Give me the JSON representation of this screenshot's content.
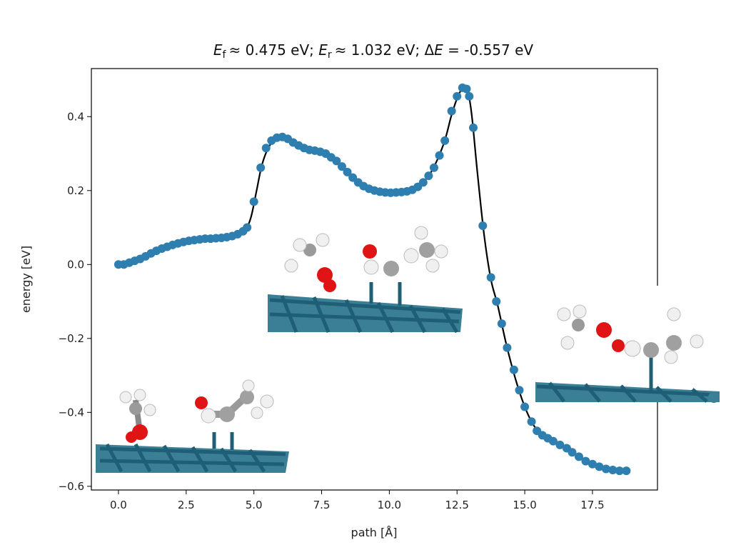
{
  "chart_data": {
    "type": "scatter",
    "title": {
      "sym1": "E",
      "sub1": "f",
      "part1": "≈ 0.475 eV; ",
      "sym2": "E",
      "sub2": "r",
      "part2": "≈ 1.032 eV; Δ",
      "sym3": "E",
      "part3": " = -0.557 eV"
    },
    "xlabel": "path [Å]",
    "ylabel": "energy [eV]",
    "xlim": [
      -1.0,
      19.9
    ],
    "ylim": [
      -0.61,
      0.53
    ],
    "xticks": [
      0.0,
      2.5,
      5.0,
      7.5,
      10.0,
      12.5,
      15.0,
      17.5
    ],
    "xtick_labels": [
      "0.0",
      "2.5",
      "5.0",
      "7.5",
      "10.0",
      "12.5",
      "15.0",
      "17.5"
    ],
    "yticks": [
      0.4,
      0.2,
      0.0,
      -0.2,
      -0.4,
      -0.6
    ],
    "ytick_labels": [
      "0.4",
      "0.2",
      "0.0",
      "−0.2",
      "−0.4",
      "−0.6"
    ],
    "grid": false,
    "marker_color": "#2e7fb0",
    "line_color": "#000000",
    "points": [
      [
        0.0,
        0.0
      ],
      [
        0.2,
        0.0
      ],
      [
        0.4,
        0.005
      ],
      [
        0.6,
        0.01
      ],
      [
        0.8,
        0.015
      ],
      [
        1.0,
        0.022
      ],
      [
        1.2,
        0.03
      ],
      [
        1.4,
        0.037
      ],
      [
        1.6,
        0.043
      ],
      [
        1.8,
        0.048
      ],
      [
        2.0,
        0.053
      ],
      [
        2.2,
        0.057
      ],
      [
        2.4,
        0.061
      ],
      [
        2.6,
        0.064
      ],
      [
        2.8,
        0.066
      ],
      [
        3.0,
        0.068
      ],
      [
        3.2,
        0.07
      ],
      [
        3.4,
        0.07
      ],
      [
        3.6,
        0.071
      ],
      [
        3.8,
        0.072
      ],
      [
        4.0,
        0.074
      ],
      [
        4.2,
        0.077
      ],
      [
        4.4,
        0.082
      ],
      [
        4.6,
        0.09
      ],
      [
        4.75,
        0.1
      ],
      [
        5.0,
        0.17
      ],
      [
        5.25,
        0.262
      ],
      [
        5.45,
        0.315
      ],
      [
        5.65,
        0.335
      ],
      [
        5.85,
        0.343
      ],
      [
        6.05,
        0.345
      ],
      [
        6.25,
        0.34
      ],
      [
        6.45,
        0.33
      ],
      [
        6.65,
        0.322
      ],
      [
        6.85,
        0.315
      ],
      [
        7.05,
        0.31
      ],
      [
        7.25,
        0.308
      ],
      [
        7.45,
        0.305
      ],
      [
        7.65,
        0.3
      ],
      [
        7.85,
        0.29
      ],
      [
        8.05,
        0.28
      ],
      [
        8.25,
        0.265
      ],
      [
        8.45,
        0.25
      ],
      [
        8.65,
        0.235
      ],
      [
        8.85,
        0.222
      ],
      [
        9.05,
        0.212
      ],
      [
        9.25,
        0.205
      ],
      [
        9.45,
        0.2
      ],
      [
        9.65,
        0.197
      ],
      [
        9.85,
        0.195
      ],
      [
        10.05,
        0.194
      ],
      [
        10.25,
        0.195
      ],
      [
        10.45,
        0.196
      ],
      [
        10.65,
        0.198
      ],
      [
        10.85,
        0.202
      ],
      [
        11.05,
        0.21
      ],
      [
        11.25,
        0.222
      ],
      [
        11.45,
        0.24
      ],
      [
        11.65,
        0.262
      ],
      [
        11.85,
        0.295
      ],
      [
        12.05,
        0.335
      ],
      [
        12.3,
        0.415
      ],
      [
        12.5,
        0.455
      ],
      [
        12.7,
        0.478
      ],
      [
        12.85,
        0.475
      ],
      [
        12.95,
        0.455
      ],
      [
        13.1,
        0.37
      ],
      [
        13.45,
        0.105
      ],
      [
        13.75,
        -0.035
      ],
      [
        13.95,
        -0.1
      ],
      [
        14.15,
        -0.16
      ],
      [
        14.35,
        -0.225
      ],
      [
        14.6,
        -0.285
      ],
      [
        14.8,
        -0.34
      ],
      [
        15.0,
        -0.385
      ],
      [
        15.25,
        -0.425
      ],
      [
        15.45,
        -0.45
      ],
      [
        15.65,
        -0.462
      ],
      [
        15.85,
        -0.47
      ],
      [
        16.05,
        -0.478
      ],
      [
        16.3,
        -0.488
      ],
      [
        16.55,
        -0.497
      ],
      [
        16.75,
        -0.508
      ],
      [
        17.0,
        -0.52
      ],
      [
        17.25,
        -0.532
      ],
      [
        17.5,
        -0.54
      ],
      [
        17.75,
        -0.547
      ],
      [
        18.0,
        -0.553
      ],
      [
        18.25,
        -0.556
      ],
      [
        18.5,
        -0.558
      ],
      [
        18.75,
        -0.558
      ]
    ],
    "curve": [
      [
        0.0,
        0.0
      ],
      [
        0.5,
        0.006
      ],
      [
        1.0,
        0.022
      ],
      [
        1.5,
        0.04
      ],
      [
        2.0,
        0.053
      ],
      [
        2.5,
        0.062
      ],
      [
        3.0,
        0.068
      ],
      [
        3.5,
        0.07
      ],
      [
        4.0,
        0.073
      ],
      [
        4.4,
        0.08
      ],
      [
        4.7,
        0.095
      ],
      [
        4.9,
        0.13
      ],
      [
        5.1,
        0.2
      ],
      [
        5.3,
        0.27
      ],
      [
        5.55,
        0.318
      ],
      [
        5.8,
        0.338
      ],
      [
        6.05,
        0.343
      ],
      [
        6.3,
        0.337
      ],
      [
        6.6,
        0.322
      ],
      [
        7.0,
        0.31
      ],
      [
        7.5,
        0.3
      ],
      [
        8.0,
        0.28
      ],
      [
        8.5,
        0.245
      ],
      [
        9.0,
        0.215
      ],
      [
        9.5,
        0.198
      ],
      [
        10.0,
        0.193
      ],
      [
        10.5,
        0.196
      ],
      [
        11.0,
        0.21
      ],
      [
        11.5,
        0.245
      ],
      [
        12.0,
        0.325
      ],
      [
        12.3,
        0.405
      ],
      [
        12.55,
        0.458
      ],
      [
        12.75,
        0.478
      ],
      [
        12.9,
        0.468
      ],
      [
        13.05,
        0.4
      ],
      [
        13.25,
        0.25
      ],
      [
        13.5,
        0.08
      ],
      [
        13.75,
        -0.04
      ],
      [
        14.0,
        -0.11
      ],
      [
        14.3,
        -0.21
      ],
      [
        14.6,
        -0.295
      ],
      [
        14.9,
        -0.365
      ],
      [
        15.2,
        -0.418
      ],
      [
        15.5,
        -0.452
      ],
      [
        15.8,
        -0.468
      ],
      [
        16.1,
        -0.48
      ],
      [
        16.5,
        -0.495
      ],
      [
        17.0,
        -0.518
      ],
      [
        17.5,
        -0.538
      ],
      [
        18.0,
        -0.552
      ],
      [
        18.5,
        -0.557
      ],
      [
        18.8,
        -0.558
      ]
    ]
  }
}
